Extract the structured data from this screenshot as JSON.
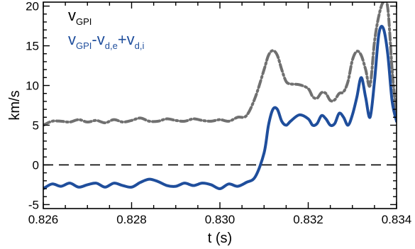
{
  "chart_data": {
    "type": "line",
    "xlabel": "t (s)",
    "ylabel": "km/s",
    "xlim": [
      0.826,
      0.834
    ],
    "ylim": [
      -5.5,
      20.5
    ],
    "x_ticks": [
      "0.826",
      "0.828",
      "0.830",
      "0.832",
      "0.834"
    ],
    "x_tick_values": [
      0.826,
      0.828,
      0.83,
      0.832,
      0.834
    ],
    "y_ticks": [
      "-5",
      "0",
      "5",
      "10",
      "15",
      "20"
    ],
    "y_tick_values": [
      -5,
      0,
      5,
      10,
      15,
      20
    ],
    "reference_line": {
      "y": 0,
      "style": "dashed",
      "color": "#000000"
    },
    "legend": [
      {
        "base": "v",
        "sub": "GPI",
        "rest": [],
        "color": "#000000"
      },
      {
        "base": "v",
        "sub": "GPI",
        "rest": [
          {
            "t": "-v",
            "sub": "d,e"
          },
          {
            "t": "+v",
            "sub": "d,i"
          }
        ],
        "color": "#1f4e9c"
      }
    ],
    "series": [
      {
        "color": "#707070",
        "style": "dash-dot",
        "x": [
          0.826,
          0.8262,
          0.8264,
          0.8266,
          0.8268,
          0.827,
          0.8272,
          0.8274,
          0.8276,
          0.8278,
          0.828,
          0.8282,
          0.8284,
          0.8286,
          0.8288,
          0.829,
          0.8292,
          0.8294,
          0.8296,
          0.8298,
          0.83,
          0.8302,
          0.8304,
          0.8306,
          0.8308,
          0.831,
          0.8311,
          0.8312,
          0.8313,
          0.8314,
          0.8315,
          0.8316,
          0.8318,
          0.832,
          0.8321,
          0.8322,
          0.8323,
          0.8324,
          0.8325,
          0.8326,
          0.8327,
          0.8328,
          0.8329,
          0.833,
          0.8331,
          0.8332,
          0.8333,
          0.8334,
          0.8335,
          0.8336,
          0.8337,
          0.8338,
          0.8339,
          0.834
        ],
        "y": [
          5.0,
          5.5,
          5.5,
          5.4,
          5.7,
          5.4,
          5.6,
          5.3,
          5.7,
          5.4,
          5.6,
          5.9,
          5.5,
          5.5,
          5.8,
          5.6,
          5.5,
          5.8,
          5.6,
          5.5,
          5.7,
          5.5,
          6.0,
          6.2,
          8.5,
          12.0,
          13.8,
          14.4,
          13.8,
          12.0,
          10.5,
          10.2,
          10.1,
          9.6,
          8.6,
          8.4,
          9.1,
          9.0,
          8.1,
          8.2,
          9.0,
          9.2,
          10.5,
          13.2,
          14.3,
          13.8,
          12.0,
          10.0,
          15.5,
          18.8,
          20.5,
          19.8,
          12.0,
          6.0
        ]
      },
      {
        "color": "#1f4e9c",
        "style": "solid",
        "x": [
          0.826,
          0.8262,
          0.8264,
          0.8266,
          0.8268,
          0.827,
          0.8272,
          0.8274,
          0.8276,
          0.8278,
          0.828,
          0.8282,
          0.8284,
          0.8286,
          0.8288,
          0.829,
          0.8292,
          0.8294,
          0.8296,
          0.8298,
          0.83,
          0.8302,
          0.8304,
          0.8306,
          0.8308,
          0.831,
          0.8311,
          0.8312,
          0.8313,
          0.8314,
          0.8315,
          0.8316,
          0.8318,
          0.832,
          0.8321,
          0.8322,
          0.8323,
          0.8324,
          0.8325,
          0.8326,
          0.8327,
          0.8328,
          0.8329,
          0.833,
          0.8331,
          0.8332,
          0.8333,
          0.8334,
          0.8335,
          0.8336,
          0.8337,
          0.8338,
          0.8339,
          0.834
        ],
        "y": [
          -3.0,
          -2.4,
          -2.7,
          -2.3,
          -2.8,
          -2.5,
          -2.3,
          -2.8,
          -2.3,
          -2.6,
          -2.8,
          -2.2,
          -1.8,
          -2.1,
          -2.6,
          -2.7,
          -2.3,
          -2.6,
          -2.3,
          -2.5,
          -3.0,
          -2.4,
          -2.7,
          -2.2,
          -1.5,
          1.5,
          5.0,
          7.0,
          7.0,
          5.5,
          5.0,
          5.5,
          6.3,
          5.8,
          5.0,
          5.2,
          6.2,
          5.8,
          5.0,
          5.2,
          6.5,
          6.0,
          5.0,
          6.3,
          8.5,
          11.0,
          8.5,
          6.0,
          10.5,
          16.5,
          17.2,
          14.0,
          8.0,
          5.5
        ]
      }
    ]
  }
}
